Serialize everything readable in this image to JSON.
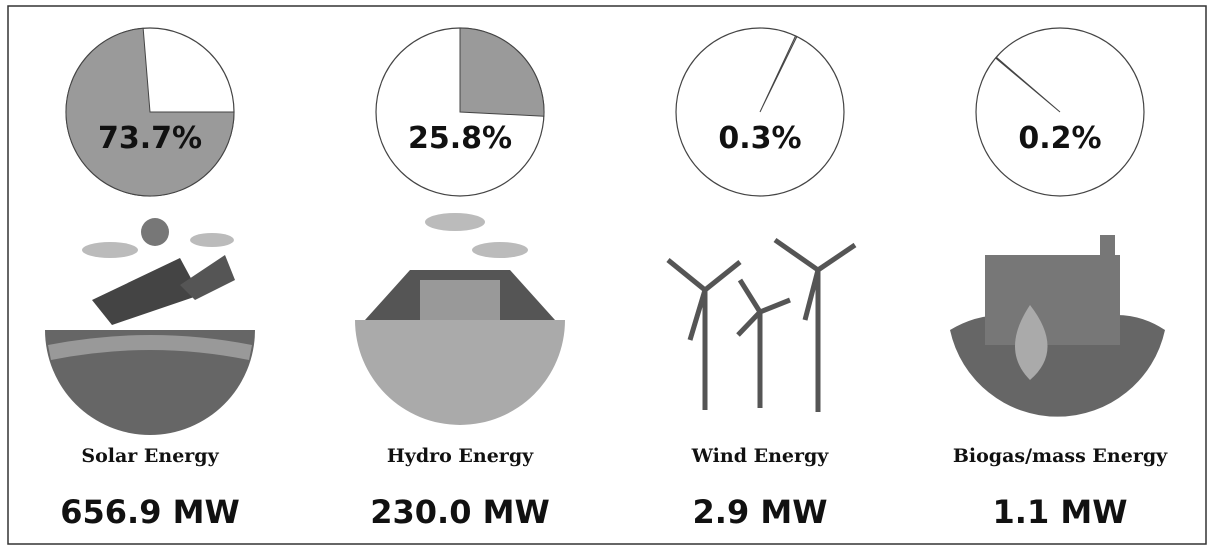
{
  "chart_data": [
    {
      "type": "pie",
      "title": "Solar Energy",
      "values": [
        73.7
      ],
      "value_labels": [
        "73.7%"
      ],
      "subtitle": "656.9 MW",
      "startangle": 90,
      "color": "#9a9a9a"
    },
    {
      "type": "pie",
      "title": "Hydro Energy",
      "values": [
        25.8
      ],
      "value_labels": [
        "25.8%"
      ],
      "subtitle": "230.0 MW",
      "startangle": 0,
      "color": "#9a9a9a"
    },
    {
      "type": "pie",
      "title": "Wind Energy",
      "values": [
        0.3
      ],
      "value_labels": [
        "0.3%"
      ],
      "subtitle": "2.9 MW",
      "startangle": 25,
      "color": "#9a9a9a"
    },
    {
      "type": "pie",
      "title": "Biogas/mass Energy",
      "values": [
        0.2
      ],
      "value_labels": [
        "0.2%"
      ],
      "subtitle": "1.1 MW",
      "startangle": -50,
      "color": "#9a9a9a"
    }
  ]
}
